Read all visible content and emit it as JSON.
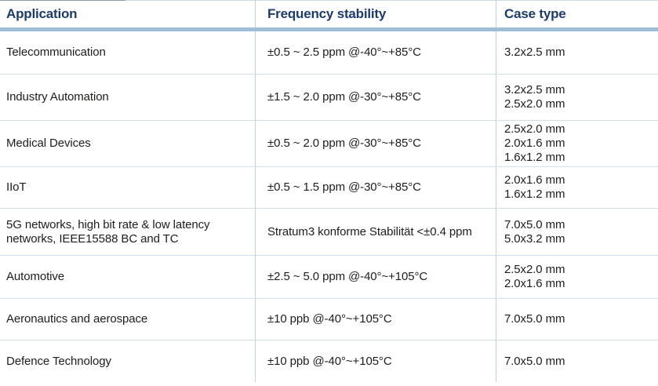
{
  "table": {
    "columns": [
      {
        "label": "Application"
      },
      {
        "label": "Frequency stability"
      },
      {
        "label": "Case type"
      }
    ],
    "rows": [
      {
        "application": "Telecommunication",
        "frequency_stability": "±0.5 ~ 2.5 ppm @-40°~+85°C",
        "case_types": [
          "3.2x2.5 mm"
        ]
      },
      {
        "application": "Industry Automation",
        "frequency_stability": "±1.5 ~ 2.0 ppm @-30°~+85°C",
        "case_types": [
          "3.2x2.5 mm",
          "2.5x2.0 mm"
        ]
      },
      {
        "application": "Medical Devices",
        "frequency_stability": "±0.5 ~ 2.0 ppm @-30°~+85°C",
        "case_types": [
          "2.5x2.0 mm",
          "2.0x1.6 mm",
          "1.6x1.2 mm"
        ]
      },
      {
        "application": "IIoT",
        "frequency_stability": "±0.5 ~ 1.5 ppm @-30°~+85°C",
        "case_types": [
          "2.0x1.6 mm",
          "1.6x1.2 mm"
        ]
      },
      {
        "application": "5G networks, high bit rate & low latency networks, IEEE15588 BC and TC",
        "frequency_stability": "Stratum3 konforme Stabilität <±0.4 ppm",
        "case_types": [
          "7.0x5.0 mm",
          "5.0x3.2 mm"
        ]
      },
      {
        "application": "Automotive",
        "frequency_stability": "±2.5 ~ 5.0 ppm @-40°~+105°C",
        "case_types": [
          "2.5x2.0 mm",
          "2.0x1.6 mm"
        ]
      },
      {
        "application": "Aeronautics and aerospace",
        "frequency_stability": "±10 ppb @-40°~+105°C",
        "case_types": [
          "7.0x5.0 mm"
        ]
      },
      {
        "application": "Defence Technology",
        "frequency_stability": "±10 ppb @-40°~+105°C",
        "case_types": [
          "7.0x5.0 mm"
        ]
      }
    ],
    "colors": {
      "header_text": "#1d3c6b",
      "body_text": "#1d1d1b",
      "header_underline": "#9fbfd9",
      "row_line": "#cfe0ec",
      "column_line": "#bdd2e2"
    }
  }
}
